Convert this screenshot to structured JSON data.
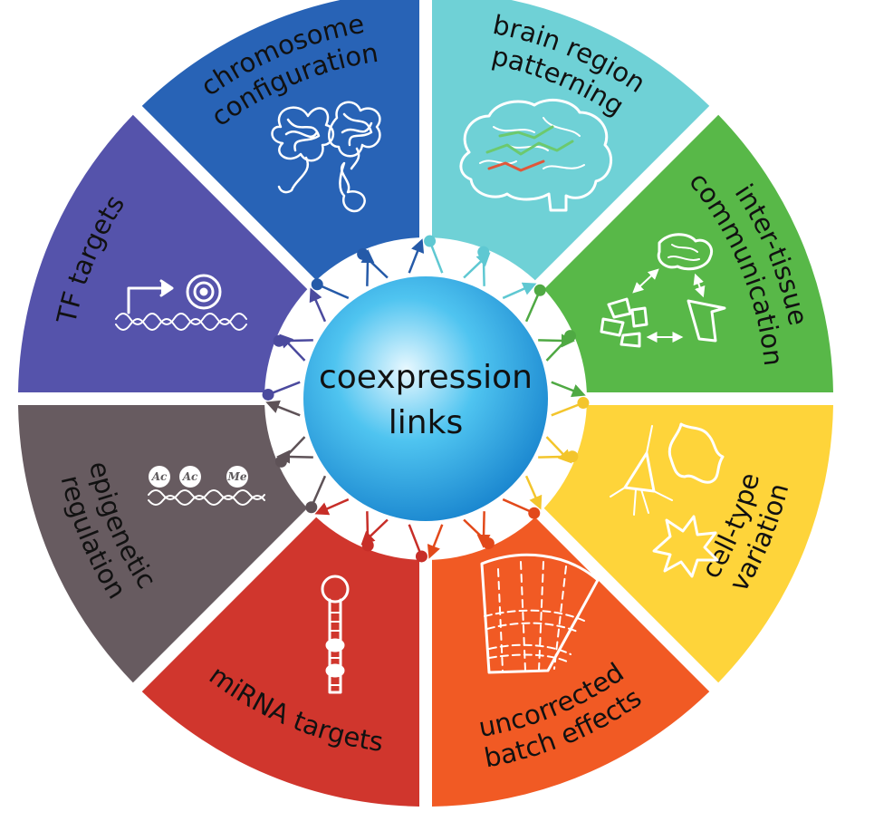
{
  "center": {
    "line1": "coexpression",
    "line2": "links",
    "gradient": [
      "#e8f8ff",
      "#4fc4f0",
      "#1a86cf"
    ]
  },
  "segments": [
    {
      "id": "brain-region-patterning",
      "lines": [
        "brain region",
        "patterning"
      ],
      "color": "#6fd1d6",
      "icon": "brain-icon"
    },
    {
      "id": "inter-tissue-communication",
      "lines": [
        "inter-tissue",
        "communication"
      ],
      "color": "#58b848",
      "icon": "organs-icon"
    },
    {
      "id": "cell-type-variation",
      "lines": [
        "cell-type",
        "variation"
      ],
      "color": "#fed43a",
      "icon": "cells-icon"
    },
    {
      "id": "uncorrected-batch-effects",
      "lines": [
        "uncorrected",
        "batch effects"
      ],
      "color": "#f15a24",
      "icon": "gel-icon"
    },
    {
      "id": "mirna-targets",
      "lines": [
        "miRNA targets"
      ],
      "color": "#d0362d",
      "icon": "hairpin-icon"
    },
    {
      "id": "epigenetic-regulation",
      "lines": [
        "epigenetic",
        "regulation"
      ],
      "color": "#675b60",
      "icon": "chromatin-marks-icon",
      "marks": [
        "Ac",
        "Ac",
        "Me"
      ]
    },
    {
      "id": "tf-targets",
      "lines": [
        "TF targets"
      ],
      "color": "#5553ab",
      "icon": "promoter-icon"
    },
    {
      "id": "chromosome-configuration",
      "lines": [
        "chromosome",
        "configuration"
      ],
      "color": "#2863b6",
      "icon": "chromosome-icon"
    }
  ],
  "arrow_colors": [
    "#5fc8d2",
    "#4fa943",
    "#f3c52c",
    "#e2491a",
    "#c72e28",
    "#5e5257",
    "#4b4a9e",
    "#255aa8"
  ]
}
